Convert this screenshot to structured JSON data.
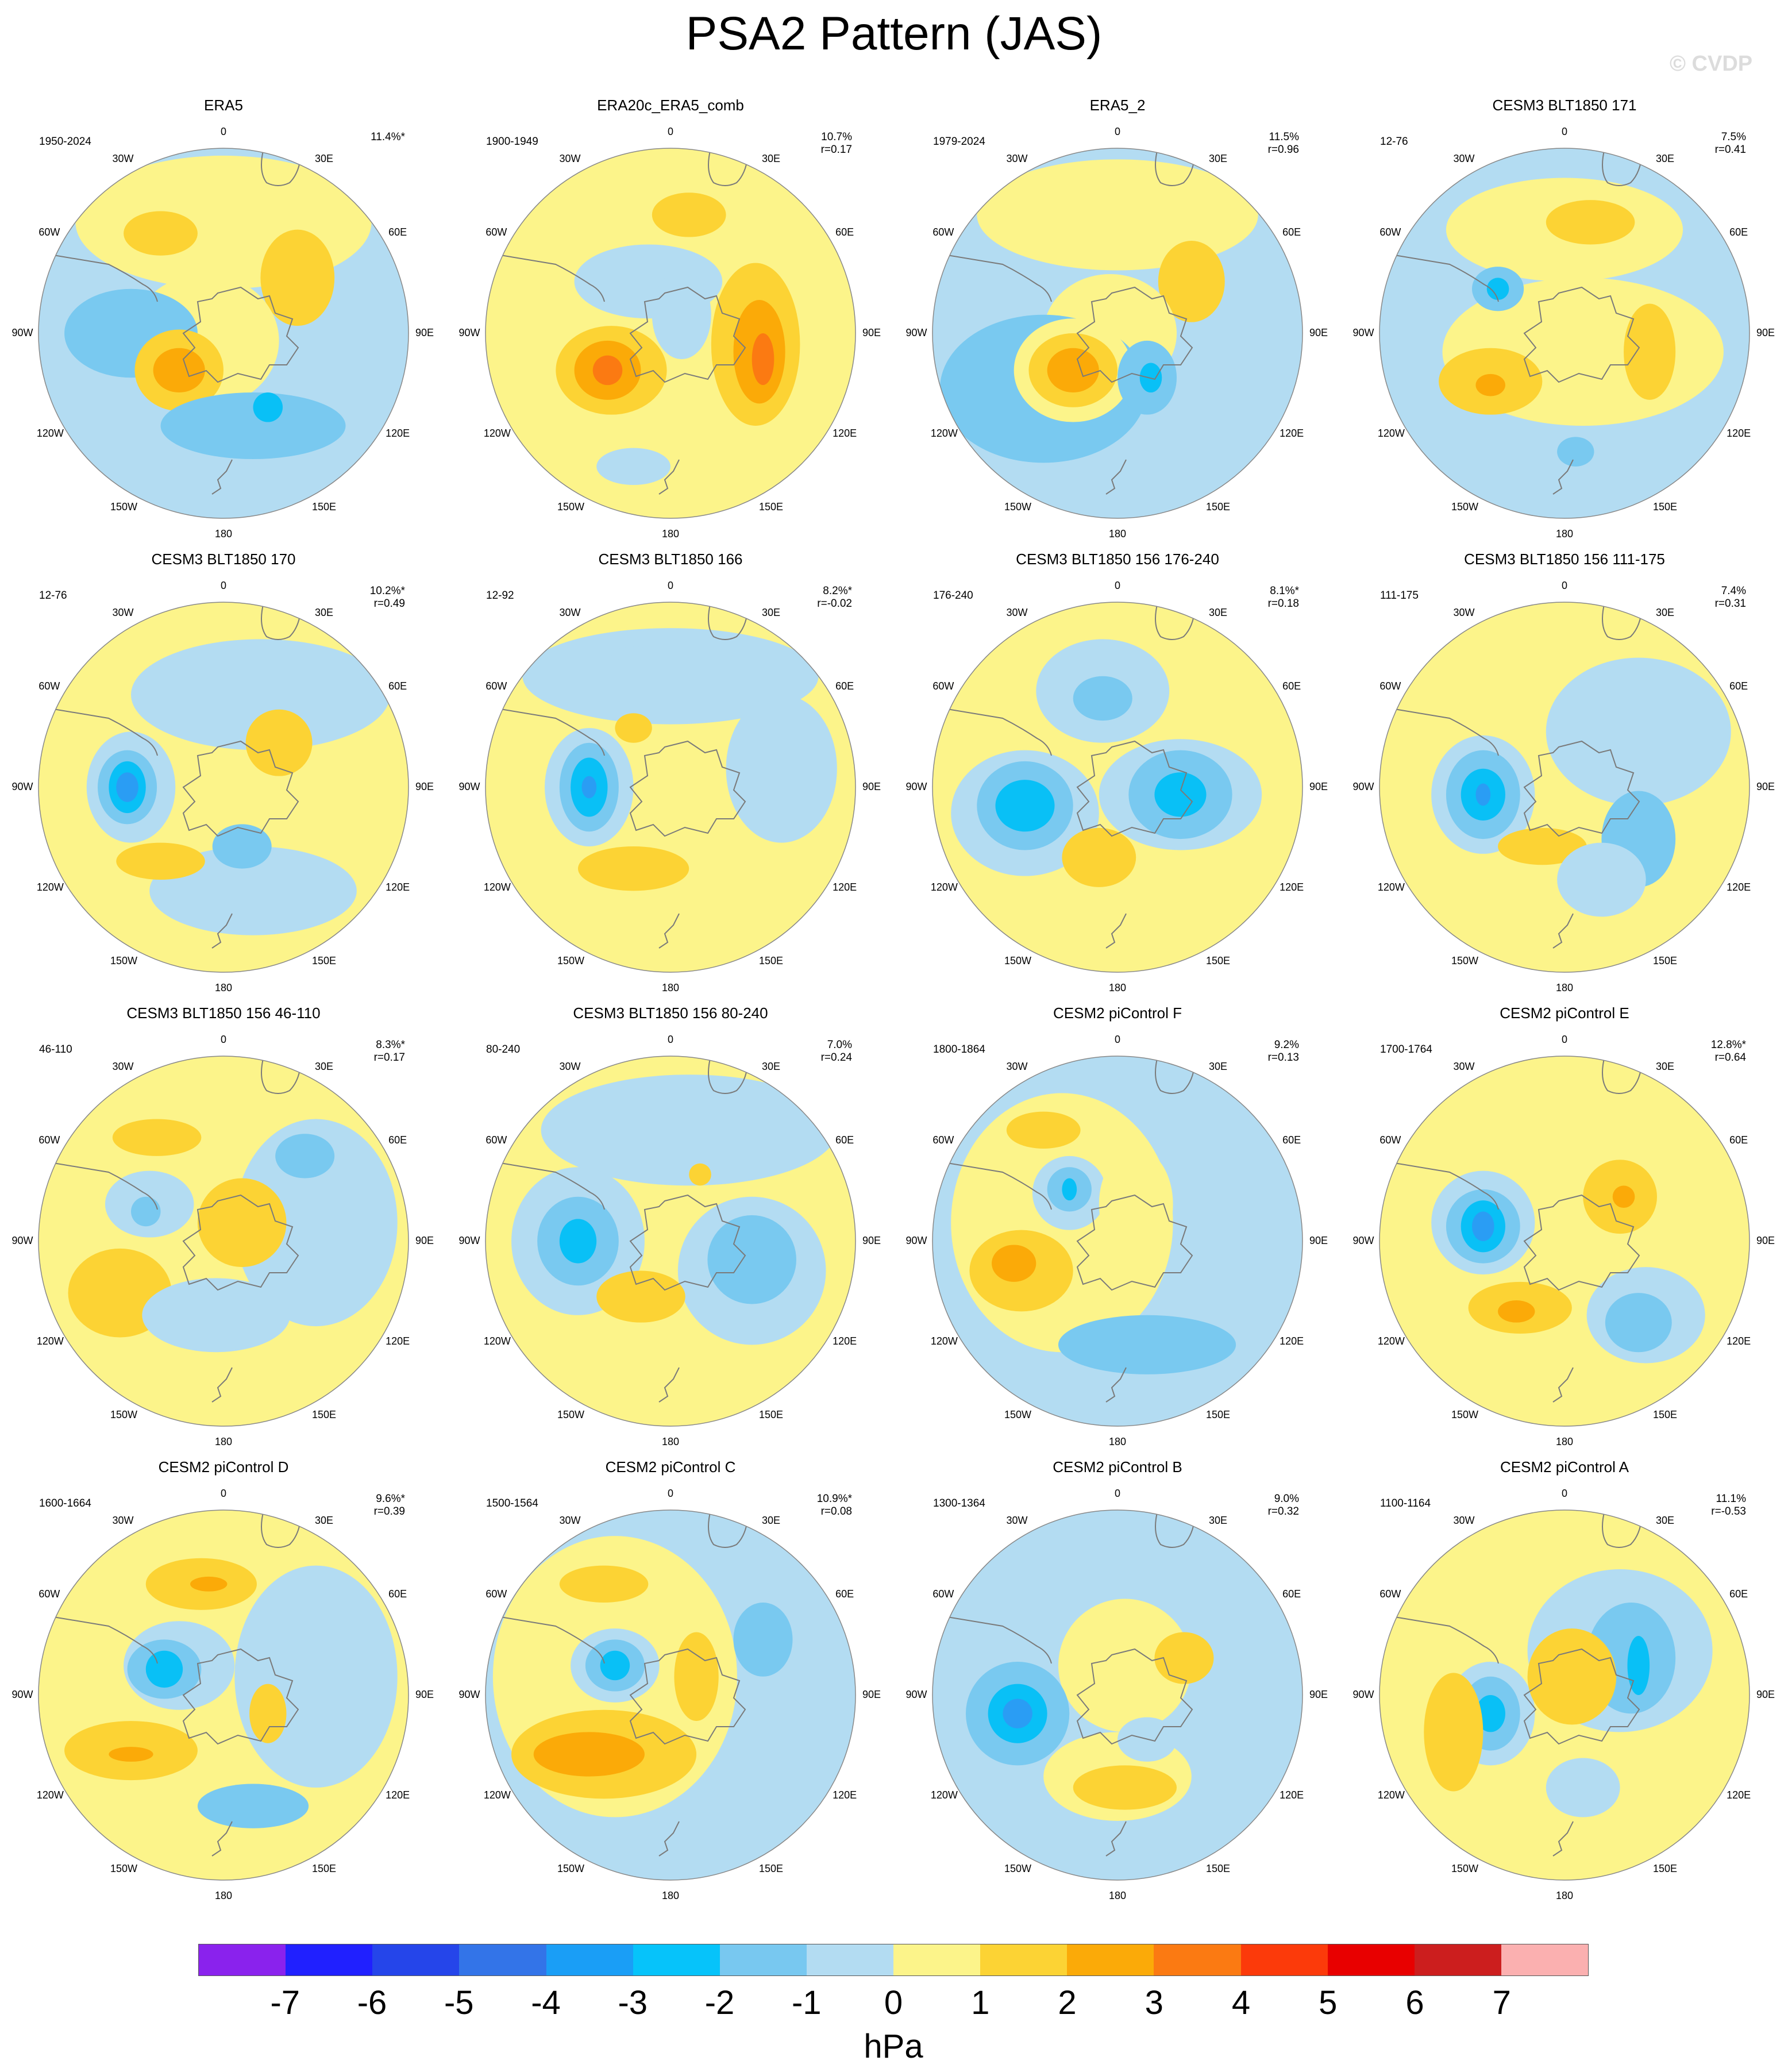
{
  "title": "PSA2 Pattern (JAS)",
  "watermark": "© CVDP",
  "colors": {
    "ocean_land_outline": "#7a7a7a",
    "neg1": "#b3dcf2",
    "neg2": "#79c9f0",
    "neg3": "#09c0f6",
    "neg4": "#2a9df4",
    "pos1": "#fcf48a",
    "pos2": "#fcd334",
    "pos3": "#fbaa08",
    "pos4": "#fb7a12"
  },
  "longitude_labels": [
    "0",
    "30E",
    "60E",
    "90E",
    "120E",
    "150E",
    "180",
    "150W",
    "120W",
    "90W",
    "60W",
    "30W"
  ],
  "panels": [
    {
      "title": "ERA5",
      "period": "1950-2024",
      "pct": "11.4%*",
      "r": "",
      "base": "neg1",
      "blobs": [
        [
          "pos1",
          0.5,
          0.2,
          0.4,
          0.18
        ],
        [
          "pos2",
          0.33,
          0.23,
          0.1,
          0.06
        ],
        [
          "pos2",
          0.7,
          0.35,
          0.1,
          0.13
        ],
        [
          "pos1",
          0.45,
          0.52,
          0.2,
          0.18
        ],
        [
          "neg2",
          0.25,
          0.5,
          0.18,
          0.12
        ],
        [
          "pos2",
          0.38,
          0.6,
          0.12,
          0.11
        ],
        [
          "pos3",
          0.38,
          0.6,
          0.07,
          0.06
        ],
        [
          "neg2",
          0.58,
          0.75,
          0.25,
          0.09
        ],
        [
          "neg3",
          0.62,
          0.7,
          0.04,
          0.04
        ]
      ]
    },
    {
      "title": "ERA20c_ERA5_comb",
      "period": "1900-1949",
      "pct": "10.7%",
      "r": "r=0.17",
      "base": "pos1",
      "blobs": [
        [
          "pos2",
          0.55,
          0.18,
          0.1,
          0.06
        ],
        [
          "neg1",
          0.44,
          0.36,
          0.2,
          0.1
        ],
        [
          "pos2",
          0.34,
          0.6,
          0.15,
          0.12
        ],
        [
          "pos3",
          0.33,
          0.6,
          0.09,
          0.08
        ],
        [
          "pos4",
          0.33,
          0.6,
          0.04,
          0.04
        ],
        [
          "pos2",
          0.73,
          0.53,
          0.12,
          0.22
        ],
        [
          "pos3",
          0.74,
          0.55,
          0.07,
          0.14
        ],
        [
          "pos4",
          0.75,
          0.57,
          0.03,
          0.07
        ],
        [
          "neg1",
          0.53,
          0.45,
          0.08,
          0.12
        ],
        [
          "neg1",
          0.4,
          0.86,
          0.1,
          0.05
        ]
      ]
    },
    {
      "title": "ERA5_2",
      "period": "1979-2024",
      "pct": "11.5%",
      "r": "r=0.96",
      "base": "neg1",
      "blobs": [
        [
          "pos1",
          0.5,
          0.18,
          0.38,
          0.15
        ],
        [
          "pos2",
          0.7,
          0.36,
          0.09,
          0.11
        ],
        [
          "pos1",
          0.48,
          0.5,
          0.18,
          0.16
        ],
        [
          "neg2",
          0.3,
          0.65,
          0.28,
          0.2
        ],
        [
          "pos1",
          0.38,
          0.6,
          0.16,
          0.14
        ],
        [
          "pos2",
          0.38,
          0.6,
          0.12,
          0.1
        ],
        [
          "pos3",
          0.38,
          0.6,
          0.07,
          0.06
        ],
        [
          "neg2",
          0.58,
          0.62,
          0.08,
          0.1
        ],
        [
          "neg3",
          0.59,
          0.62,
          0.03,
          0.04
        ]
      ]
    },
    {
      "title": "CESM3 BLT1850 171",
      "period": "12-76",
      "pct": "7.5%",
      "r": "r=0.41",
      "base": "neg1",
      "blobs": [
        [
          "pos1",
          0.5,
          0.22,
          0.32,
          0.14
        ],
        [
          "pos2",
          0.57,
          0.2,
          0.12,
          0.06
        ],
        [
          "pos1",
          0.55,
          0.55,
          0.38,
          0.2
        ],
        [
          "neg2",
          0.32,
          0.38,
          0.07,
          0.06
        ],
        [
          "neg3",
          0.32,
          0.38,
          0.03,
          0.03
        ],
        [
          "pos2",
          0.3,
          0.63,
          0.14,
          0.09
        ],
        [
          "pos3",
          0.3,
          0.64,
          0.04,
          0.03
        ],
        [
          "pos2",
          0.73,
          0.55,
          0.07,
          0.13
        ],
        [
          "neg2",
          0.53,
          0.82,
          0.05,
          0.04
        ]
      ]
    },
    {
      "title": "CESM3 BLT1850 170",
      "period": "12-76",
      "pct": "10.2%*",
      "r": "r=0.49",
      "base": "pos1",
      "blobs": [
        [
          "neg1",
          0.6,
          0.25,
          0.35,
          0.15
        ],
        [
          "neg1",
          0.58,
          0.78,
          0.28,
          0.12
        ],
        [
          "neg1",
          0.25,
          0.5,
          0.12,
          0.15
        ],
        [
          "neg2",
          0.24,
          0.5,
          0.08,
          0.1
        ],
        [
          "neg3",
          0.24,
          0.5,
          0.05,
          0.07
        ],
        [
          "neg4",
          0.24,
          0.5,
          0.03,
          0.04
        ],
        [
          "pos2",
          0.65,
          0.38,
          0.09,
          0.09
        ],
        [
          "pos2",
          0.33,
          0.7,
          0.12,
          0.05
        ],
        [
          "neg2",
          0.55,
          0.66,
          0.08,
          0.06
        ]
      ]
    },
    {
      "title": "CESM3 BLT1850 166",
      "period": "12-92",
      "pct": "8.2%*",
      "r": "r=-0.02",
      "base": "pos1",
      "blobs": [
        [
          "neg1",
          0.5,
          0.2,
          0.4,
          0.13
        ],
        [
          "neg1",
          0.8,
          0.45,
          0.15,
          0.2
        ],
        [
          "neg1",
          0.28,
          0.5,
          0.12,
          0.16
        ],
        [
          "neg2",
          0.28,
          0.5,
          0.08,
          0.12
        ],
        [
          "neg3",
          0.28,
          0.5,
          0.05,
          0.08
        ],
        [
          "neg4",
          0.28,
          0.5,
          0.02,
          0.03
        ],
        [
          "pos2",
          0.4,
          0.72,
          0.15,
          0.06
        ],
        [
          "pos2",
          0.4,
          0.34,
          0.05,
          0.04
        ],
        [
          "neg1",
          0.4,
          0.14,
          0.06,
          0.02
        ]
      ]
    },
    {
      "title": "CESM3 BLT1850 156 176-240",
      "period": "176-240",
      "pct": "8.1%*",
      "r": "r=0.18",
      "base": "pos1",
      "blobs": [
        [
          "neg1",
          0.46,
          0.24,
          0.18,
          0.14
        ],
        [
          "neg2",
          0.46,
          0.26,
          0.08,
          0.06
        ],
        [
          "neg1",
          0.25,
          0.57,
          0.2,
          0.17
        ],
        [
          "neg2",
          0.25,
          0.55,
          0.13,
          0.12
        ],
        [
          "neg3",
          0.25,
          0.55,
          0.08,
          0.07
        ],
        [
          "neg1",
          0.67,
          0.52,
          0.22,
          0.15
        ],
        [
          "neg2",
          0.67,
          0.52,
          0.14,
          0.12
        ],
        [
          "neg3",
          0.67,
          0.52,
          0.07,
          0.06
        ],
        [
          "pos2",
          0.45,
          0.69,
          0.1,
          0.08
        ]
      ]
    },
    {
      "title": "CESM3 BLT1850 156 111-175",
      "period": "111-175",
      "pct": "7.4%",
      "r": "r=0.31",
      "base": "pos1",
      "blobs": [
        [
          "neg1",
          0.7,
          0.35,
          0.25,
          0.2
        ],
        [
          "neg1",
          0.28,
          0.52,
          0.14,
          0.16
        ],
        [
          "neg2",
          0.28,
          0.52,
          0.1,
          0.12
        ],
        [
          "neg3",
          0.28,
          0.52,
          0.06,
          0.07
        ],
        [
          "neg4",
          0.28,
          0.52,
          0.02,
          0.03
        ],
        [
          "neg2",
          0.7,
          0.64,
          0.1,
          0.13
        ],
        [
          "pos2",
          0.44,
          0.66,
          0.12,
          0.05
        ],
        [
          "neg1",
          0.6,
          0.75,
          0.12,
          0.1
        ]
      ]
    },
    {
      "title": "CESM3 BLT1850 156 46-110",
      "period": "46-110",
      "pct": "8.3%*",
      "r": "r=0.17",
      "base": "pos1",
      "blobs": [
        [
          "neg1",
          0.75,
          0.45,
          0.22,
          0.28
        ],
        [
          "neg1",
          0.3,
          0.4,
          0.12,
          0.09
        ],
        [
          "neg2",
          0.29,
          0.42,
          0.04,
          0.04
        ],
        [
          "neg2",
          0.72,
          0.27,
          0.08,
          0.06
        ],
        [
          "pos2",
          0.32,
          0.22,
          0.12,
          0.05
        ],
        [
          "pos2",
          0.22,
          0.64,
          0.14,
          0.12
        ],
        [
          "pos2",
          0.55,
          0.45,
          0.12,
          0.12
        ],
        [
          "neg1",
          0.48,
          0.7,
          0.2,
          0.1
        ]
      ]
    },
    {
      "title": "CESM3 BLT1850 156 80-240",
      "period": "80-240",
      "pct": "7.0%",
      "r": "r=0.24",
      "base": "pos1",
      "blobs": [
        [
          "neg1",
          0.55,
          0.2,
          0.4,
          0.15
        ],
        [
          "neg1",
          0.25,
          0.5,
          0.18,
          0.2
        ],
        [
          "neg2",
          0.25,
          0.5,
          0.11,
          0.12
        ],
        [
          "neg3",
          0.25,
          0.5,
          0.05,
          0.06
        ],
        [
          "neg1",
          0.72,
          0.58,
          0.2,
          0.2
        ],
        [
          "neg2",
          0.72,
          0.55,
          0.12,
          0.12
        ],
        [
          "pos2",
          0.42,
          0.65,
          0.12,
          0.07
        ],
        [
          "pos2",
          0.58,
          0.32,
          0.03,
          0.03
        ]
      ]
    },
    {
      "title": "CESM2 piControl F",
      "period": "1800-1864",
      "pct": "9.2%",
      "r": "r=0.13",
      "base": "neg1",
      "blobs": [
        [
          "pos1",
          0.35,
          0.45,
          0.3,
          0.35
        ],
        [
          "pos2",
          0.3,
          0.2,
          0.1,
          0.05
        ],
        [
          "pos2",
          0.24,
          0.58,
          0.14,
          0.11
        ],
        [
          "pos3",
          0.22,
          0.56,
          0.06,
          0.05
        ],
        [
          "neg1",
          0.37,
          0.37,
          0.1,
          0.1
        ],
        [
          "neg2",
          0.37,
          0.36,
          0.06,
          0.06
        ],
        [
          "neg3",
          0.37,
          0.36,
          0.02,
          0.03
        ],
        [
          "neg2",
          0.58,
          0.78,
          0.24,
          0.08
        ],
        [
          "pos1",
          0.55,
          0.4,
          0.1,
          0.15
        ]
      ]
    },
    {
      "title": "CESM2 piControl E",
      "period": "1700-1764",
      "pct": "12.8%*",
      "r": "r=0.64",
      "base": "pos1",
      "blobs": [
        [
          "neg1",
          0.28,
          0.45,
          0.14,
          0.14
        ],
        [
          "neg2",
          0.28,
          0.46,
          0.1,
          0.1
        ],
        [
          "neg3",
          0.28,
          0.46,
          0.06,
          0.07
        ],
        [
          "neg4",
          0.28,
          0.46,
          0.03,
          0.04
        ],
        [
          "pos2",
          0.65,
          0.38,
          0.1,
          0.1
        ],
        [
          "pos3",
          0.66,
          0.38,
          0.03,
          0.03
        ],
        [
          "pos2",
          0.38,
          0.68,
          0.14,
          0.07
        ],
        [
          "pos3",
          0.37,
          0.69,
          0.05,
          0.03
        ],
        [
          "neg1",
          0.72,
          0.7,
          0.16,
          0.13
        ],
        [
          "neg2",
          0.7,
          0.72,
          0.09,
          0.08
        ]
      ]
    },
    {
      "title": "CESM2 piControl D",
      "period": "1600-1664",
      "pct": "9.6%*",
      "r": "r=0.39",
      "base": "pos1",
      "blobs": [
        [
          "neg1",
          0.75,
          0.45,
          0.22,
          0.3
        ],
        [
          "pos2",
          0.44,
          0.2,
          0.15,
          0.07
        ],
        [
          "pos3",
          0.46,
          0.2,
          0.05,
          0.02
        ],
        [
          "neg1",
          0.38,
          0.42,
          0.15,
          0.12
        ],
        [
          "neg2",
          0.34,
          0.43,
          0.1,
          0.08
        ],
        [
          "neg3",
          0.34,
          0.43,
          0.05,
          0.05
        ],
        [
          "pos2",
          0.25,
          0.65,
          0.18,
          0.08
        ],
        [
          "pos3",
          0.25,
          0.66,
          0.06,
          0.02
        ],
        [
          "pos2",
          0.62,
          0.55,
          0.05,
          0.08
        ],
        [
          "neg2",
          0.58,
          0.8,
          0.15,
          0.06
        ]
      ]
    },
    {
      "title": "CESM2 piControl C",
      "period": "1500-1564",
      "pct": "10.9%*",
      "r": "r=0.08",
      "base": "neg1",
      "blobs": [
        [
          "pos1",
          0.35,
          0.45,
          0.33,
          0.38
        ],
        [
          "pos2",
          0.32,
          0.2,
          0.12,
          0.05
        ],
        [
          "pos2",
          0.32,
          0.66,
          0.25,
          0.12
        ],
        [
          "pos3",
          0.28,
          0.66,
          0.15,
          0.06
        ],
        [
          "neg1",
          0.35,
          0.42,
          0.12,
          0.1
        ],
        [
          "neg2",
          0.35,
          0.42,
          0.08,
          0.07
        ],
        [
          "neg3",
          0.35,
          0.42,
          0.04,
          0.04
        ],
        [
          "neg2",
          0.75,
          0.35,
          0.08,
          0.1
        ],
        [
          "pos2",
          0.57,
          0.45,
          0.06,
          0.12
        ]
      ]
    },
    {
      "title": "CESM2 piControl B",
      "period": "1300-1364",
      "pct": "9.0%",
      "r": "r=0.32",
      "base": "neg1",
      "blobs": [
        [
          "pos1",
          0.52,
          0.42,
          0.18,
          0.18
        ],
        [
          "pos1",
          0.5,
          0.72,
          0.2,
          0.12
        ],
        [
          "pos2",
          0.52,
          0.75,
          0.14,
          0.06
        ],
        [
          "pos2",
          0.68,
          0.4,
          0.08,
          0.07
        ],
        [
          "neg2",
          0.23,
          0.55,
          0.14,
          0.14
        ],
        [
          "neg3",
          0.23,
          0.55,
          0.08,
          0.08
        ],
        [
          "neg4",
          0.23,
          0.55,
          0.04,
          0.04
        ],
        [
          "neg1",
          0.58,
          0.62,
          0.08,
          0.06
        ]
      ]
    },
    {
      "title": "CESM2 piControl A",
      "period": "1100-1164",
      "pct": "11.1%",
      "r": "r=-0.53",
      "base": "pos1",
      "blobs": [
        [
          "neg1",
          0.65,
          0.38,
          0.25,
          0.22
        ],
        [
          "neg2",
          0.68,
          0.4,
          0.12,
          0.15
        ],
        [
          "neg3",
          0.7,
          0.42,
          0.03,
          0.08
        ],
        [
          "neg1",
          0.3,
          0.55,
          0.12,
          0.14
        ],
        [
          "neg2",
          0.3,
          0.55,
          0.08,
          0.1
        ],
        [
          "neg3",
          0.3,
          0.55,
          0.04,
          0.05
        ],
        [
          "pos2",
          0.2,
          0.6,
          0.08,
          0.16
        ],
        [
          "pos2",
          0.52,
          0.45,
          0.12,
          0.13
        ],
        [
          "neg1",
          0.55,
          0.75,
          0.1,
          0.08
        ]
      ]
    }
  ],
  "colorbar": {
    "colors": [
      "#8a22ed",
      "#2020ff",
      "#2545ea",
      "#3374e8",
      "#1a9ef6",
      "#06c3fa",
      "#78c8f0",
      "#b3dcf2",
      "#fcf48a",
      "#fcd334",
      "#fbaa08",
      "#fb7a12",
      "#fc3a0a",
      "#e80000",
      "#cc1e1e",
      "#fbb0b0"
    ],
    "labels": [
      "-7",
      "-6",
      "-5",
      "-4",
      "-3",
      "-2",
      "-1",
      "0",
      "1",
      "2",
      "3",
      "4",
      "5",
      "6",
      "7"
    ],
    "unit": "hPa"
  }
}
